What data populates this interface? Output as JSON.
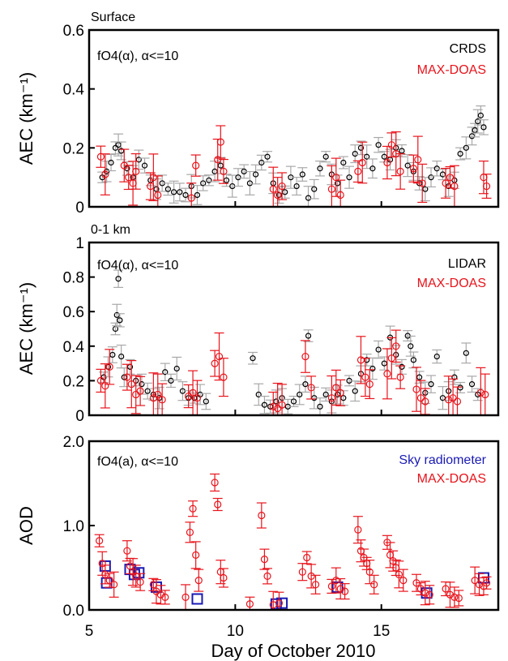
{
  "xlabel": "Day of October 2010",
  "x_ticks": [
    "5",
    "10",
    "15"
  ],
  "xlim": [
    5,
    19
  ],
  "colors": {
    "black": "#000000",
    "red": "#e8141c",
    "blue": "#1a1ab4",
    "gray": "#a8a8a8"
  },
  "chart_data": [
    {
      "type": "scatter",
      "title": "Surface",
      "ylabel": "AEC (km⁻¹)",
      "annotation": "fO4(α), α<=10",
      "ylim": [
        0,
        0.6
      ],
      "y_ticks": [
        "0",
        "0.2",
        "0.4",
        "0.6"
      ],
      "y_tick_values": [
        0,
        0.2,
        0.4,
        0.6
      ],
      "series": [
        {
          "name": "CRDS",
          "color": "#000000",
          "x": [
            5.45,
            5.6,
            5.75,
            5.9,
            6.0,
            6.1,
            6.3,
            6.5,
            6.7,
            6.9,
            7.1,
            7.3,
            7.5,
            7.7,
            7.9,
            8.1,
            8.3,
            8.5,
            8.7,
            8.9,
            9.1,
            9.3,
            9.5,
            9.7,
            9.9,
            10.1,
            10.3,
            10.5,
            10.7,
            10.9,
            11.1,
            11.3,
            11.5,
            11.7,
            11.9,
            12.1,
            12.3,
            12.5,
            12.7,
            12.9,
            13.1,
            13.3,
            13.5,
            13.7,
            13.9,
            14.1,
            14.3,
            14.5,
            14.7,
            14.9,
            15.1,
            15.3,
            15.5,
            15.7,
            15.9,
            16.1,
            16.3,
            16.5,
            16.7,
            16.9,
            17.1,
            17.3,
            17.5,
            17.7,
            17.9,
            18.1,
            18.2,
            18.3,
            18.4,
            18.5
          ],
          "y": [
            0.1,
            0.12,
            0.15,
            0.2,
            0.21,
            0.19,
            0.13,
            0.1,
            0.16,
            0.14,
            0.09,
            0.06,
            0.08,
            0.06,
            0.05,
            0.05,
            0.04,
            0.07,
            0.04,
            0.08,
            0.09,
            0.12,
            0.14,
            0.09,
            0.07,
            0.1,
            0.12,
            0.08,
            0.11,
            0.15,
            0.17,
            0.08,
            0.04,
            0.05,
            0.1,
            0.07,
            0.11,
            0.03,
            0.06,
            0.13,
            0.17,
            0.11,
            0.08,
            0.15,
            0.1,
            0.18,
            0.2,
            0.17,
            0.13,
            0.21,
            0.17,
            0.16,
            0.2,
            0.19,
            0.14,
            0.12,
            0.08,
            0.06,
            0.1,
            0.13,
            0.11,
            0.07,
            0.09,
            0.18,
            0.2,
            0.24,
            0.26,
            0.29,
            0.31,
            0.27
          ],
          "err": 0.03
        },
        {
          "name": "MAX-DOAS",
          "color": "#e8141c",
          "x": [
            5.4,
            5.55,
            6.2,
            6.35,
            6.5,
            6.6,
            7.1,
            7.2,
            7.35,
            8.5,
            8.65,
            9.4,
            9.5,
            9.6,
            11.3,
            11.45,
            11.6,
            13.3,
            13.45,
            13.6,
            14.2,
            14.35,
            15.2,
            15.35,
            15.5,
            15.65,
            16.1,
            16.25,
            16.4,
            17.2,
            17.35,
            17.5,
            18.5,
            18.6
          ],
          "y": [
            0.17,
            0.11,
            0.14,
            0.1,
            0.08,
            0.12,
            0.07,
            0.1,
            0.04,
            0.03,
            0.14,
            0.16,
            0.22,
            0.12,
            0.06,
            0.04,
            0.07,
            0.06,
            0.1,
            0.04,
            0.12,
            0.15,
            0.15,
            0.21,
            0.18,
            0.12,
            0.13,
            0.16,
            0.08,
            0.08,
            0.1,
            0.07,
            0.1,
            0.07
          ],
          "err": 0.06
        }
      ]
    },
    {
      "type": "scatter",
      "title": "0-1 km",
      "ylabel": "AEC (km⁻¹)",
      "annotation": "fO4(α), α<=10",
      "ylim": [
        0,
        1.0
      ],
      "y_ticks": [
        "0",
        "0.2",
        "0.4",
        "0.6",
        "0.8",
        "1"
      ],
      "y_tick_values": [
        0,
        0.2,
        0.4,
        0.6,
        0.8,
        1.0
      ],
      "series": [
        {
          "name": "LIDAR",
          "color": "#000000",
          "x": [
            5.5,
            5.65,
            5.8,
            5.9,
            5.95,
            6.0,
            6.05,
            6.1,
            6.2,
            6.4,
            6.6,
            6.8,
            7.0,
            7.2,
            7.4,
            7.6,
            7.8,
            8.0,
            8.2,
            8.4,
            8.6,
            8.8,
            9.0,
            10.6,
            10.8,
            11.0,
            11.2,
            11.4,
            11.6,
            11.8,
            12.0,
            12.2,
            12.4,
            12.5,
            12.7,
            12.9,
            13.1,
            13.3,
            13.5,
            13.7,
            13.9,
            14.1,
            14.3,
            14.5,
            14.7,
            14.9,
            15.1,
            15.3,
            15.5,
            15.7,
            15.9,
            16.0,
            16.1,
            16.3,
            16.5,
            16.7,
            16.9,
            17.1,
            17.3,
            17.5,
            17.7,
            17.9,
            18.1,
            18.3
          ],
          "y": [
            0.22,
            0.28,
            0.35,
            0.5,
            0.58,
            0.79,
            0.55,
            0.34,
            0.22,
            0.28,
            0.2,
            0.18,
            0.14,
            0.12,
            0.1,
            0.25,
            0.2,
            0.27,
            0.14,
            0.1,
            0.1,
            0.12,
            0.08,
            0.33,
            0.12,
            0.06,
            0.05,
            0.08,
            0.1,
            0.05,
            0.08,
            0.12,
            0.18,
            0.46,
            0.1,
            0.05,
            0.12,
            0.08,
            0.12,
            0.1,
            0.2,
            0.14,
            0.24,
            0.32,
            0.27,
            0.38,
            0.3,
            0.45,
            0.35,
            0.28,
            0.46,
            0.4,
            0.32,
            0.22,
            0.13,
            0.18,
            0.34,
            0.1,
            0.14,
            0.22,
            0.16,
            0.36,
            0.18,
            0.12
          ],
          "err": 0.05
        },
        {
          "name": "MAX-DOAS",
          "color": "#e8141c",
          "x": [
            5.4,
            5.55,
            5.7,
            6.3,
            6.45,
            6.6,
            6.75,
            7.2,
            7.35,
            7.5,
            8.4,
            8.55,
            8.7,
            9.3,
            9.45,
            9.6,
            11.3,
            11.45,
            11.6,
            12.4,
            12.6,
            13.3,
            13.45,
            13.6,
            14.3,
            14.45,
            14.6,
            15.2,
            15.35,
            15.5,
            15.65,
            16.2,
            16.35,
            16.5,
            17.3,
            17.45,
            17.6,
            18.4,
            18.55
          ],
          "y": [
            0.2,
            0.17,
            0.28,
            0.22,
            0.18,
            0.12,
            0.14,
            0.1,
            0.12,
            0.09,
            0.11,
            0.13,
            0.1,
            0.3,
            0.34,
            0.22,
            0.05,
            0.04,
            0.06,
            0.34,
            0.16,
            0.1,
            0.16,
            0.13,
            0.32,
            0.22,
            0.18,
            0.24,
            0.33,
            0.4,
            0.22,
            0.15,
            0.1,
            0.08,
            0.09,
            0.1,
            0.08,
            0.13,
            0.12
          ],
          "err": 0.11
        }
      ]
    },
    {
      "type": "scatter",
      "title": "",
      "ylabel": "AOD",
      "annotation": "fO4(a), α<=10",
      "ylim": [
        0,
        2.0
      ],
      "y_ticks": [
        "0.0",
        "1.0",
        "2.0"
      ],
      "y_tick_values": [
        0,
        1.0,
        2.0
      ],
      "series": [
        {
          "name": "Sky radiometer",
          "color": "#1a1ab4",
          "x": [
            5.55,
            5.6,
            6.4,
            6.55,
            6.7,
            7.3,
            8.7,
            11.4,
            11.6,
            13.5,
            16.55,
            18.5
          ],
          "y": [
            0.52,
            0.32,
            0.48,
            0.42,
            0.44,
            0.27,
            0.13,
            0.07,
            0.08,
            0.27,
            0.2,
            0.38
          ],
          "err": 0
        },
        {
          "name": "MAX-DOAS",
          "color": "#e8141c",
          "x": [
            5.35,
            5.45,
            5.55,
            5.7,
            5.85,
            6.3,
            6.4,
            6.5,
            6.6,
            6.75,
            7.2,
            7.3,
            7.45,
            7.6,
            8.3,
            8.45,
            8.55,
            8.65,
            8.75,
            9.3,
            9.4,
            9.5,
            9.6,
            10.5,
            10.9,
            11.0,
            11.1,
            11.3,
            11.5,
            12.3,
            12.45,
            12.6,
            12.75,
            13.3,
            13.45,
            13.6,
            13.75,
            14.2,
            14.3,
            14.4,
            14.5,
            14.6,
            14.75,
            15.2,
            15.3,
            15.4,
            15.5,
            15.6,
            15.75,
            16.2,
            16.35,
            16.5,
            16.65,
            17.2,
            17.35,
            17.5,
            17.65,
            18.2,
            18.35,
            18.5,
            18.6
          ],
          "y": [
            0.82,
            0.55,
            0.42,
            0.35,
            0.3,
            0.7,
            0.52,
            0.45,
            0.4,
            0.33,
            0.3,
            0.22,
            0.18,
            0.15,
            0.15,
            0.92,
            1.2,
            0.65,
            0.35,
            1.51,
            1.25,
            0.45,
            0.38,
            0.07,
            1.12,
            0.6,
            0.4,
            0.06,
            0.08,
            0.45,
            0.62,
            0.4,
            0.3,
            0.28,
            0.35,
            0.25,
            0.22,
            0.95,
            0.7,
            0.62,
            0.55,
            0.45,
            0.3,
            0.8,
            0.65,
            0.58,
            0.5,
            0.42,
            0.35,
            0.32,
            0.25,
            0.2,
            0.18,
            0.25,
            0.18,
            0.15,
            0.14,
            0.35,
            0.3,
            0.28,
            0.32
          ],
          "err": 0.12
        }
      ]
    }
  ]
}
